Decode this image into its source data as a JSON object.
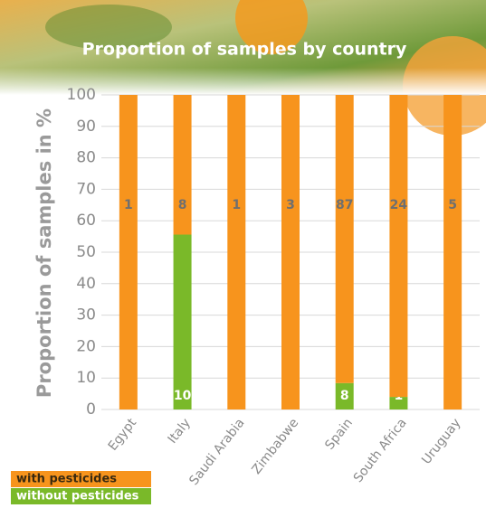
{
  "chart_data": {
    "type": "stacked_bar",
    "title": "Proportion of samples by country",
    "y_label": "Proportion of samples in %",
    "categories": [
      "Egypt",
      "Italy",
      "Saudi Arabia",
      "Zimbabwe",
      "Spain",
      "South Africa",
      "Uruguay"
    ],
    "series": [
      {
        "name": "without pesticides",
        "color": "#7ab929",
        "values": [
          0,
          55.6,
          0,
          0,
          8.4,
          4,
          0
        ],
        "counts": [
          null,
          10,
          null,
          null,
          8,
          1,
          null
        ]
      },
      {
        "name": "with pesticides",
        "color": "#f7941d",
        "values": [
          100,
          44.4,
          100,
          100,
          91.6,
          96,
          100
        ],
        "counts": [
          1,
          8,
          1,
          3,
          87,
          24,
          5
        ]
      }
    ],
    "ylim": [
      0,
      100
    ],
    "yticks": [
      0,
      10,
      20,
      30,
      40,
      50,
      60,
      70,
      80,
      90,
      100
    ],
    "grid": true
  }
}
